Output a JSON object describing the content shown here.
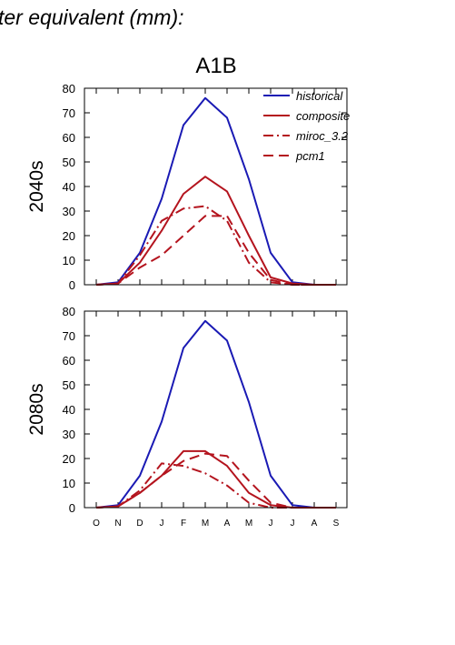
{
  "header_text": "ter equivalent (mm):",
  "scenario": "A1B",
  "colors": {
    "historical": "#1a1ab4",
    "projection": "#b4141e"
  },
  "chart_data": [
    {
      "type": "line",
      "panel_label": "2040s",
      "categories": [
        "O",
        "N",
        "D",
        "J",
        "F",
        "M",
        "A",
        "M",
        "J",
        "J",
        "A",
        "S"
      ],
      "ylim": [
        0,
        80
      ],
      "yticks": [
        0,
        10,
        20,
        30,
        40,
        50,
        60,
        70,
        80
      ],
      "legend_position": "top-right",
      "series": [
        {
          "name": "historical",
          "style": "solid",
          "color": "#1a1ab4",
          "values": [
            0,
            1,
            13,
            35,
            65,
            76,
            68,
            43,
            13,
            1,
            0,
            0
          ]
        },
        {
          "name": "composite",
          "style": "solid",
          "color": "#b4141e",
          "values": [
            0,
            0.5,
            9,
            22,
            37,
            44,
            38,
            20,
            3,
            0.5,
            0,
            0
          ]
        },
        {
          "name": "miroc_3.2",
          "style": "dashdot",
          "color": "#b4141e",
          "values": [
            0,
            0.5,
            12,
            26,
            31,
            32,
            26,
            9,
            1,
            0,
            0,
            0
          ]
        },
        {
          "name": "pcm1",
          "style": "dash",
          "color": "#b4141e",
          "values": [
            0,
            0.5,
            7,
            12,
            20,
            28,
            28,
            13,
            2,
            0,
            0,
            0
          ]
        }
      ]
    },
    {
      "type": "line",
      "panel_label": "2080s",
      "categories": [
        "O",
        "N",
        "D",
        "J",
        "F",
        "M",
        "A",
        "M",
        "J",
        "J",
        "A",
        "S"
      ],
      "ylim": [
        0,
        80
      ],
      "yticks": [
        0,
        10,
        20,
        30,
        40,
        50,
        60,
        70,
        80
      ],
      "series": [
        {
          "name": "historical",
          "style": "solid",
          "color": "#1a1ab4",
          "values": [
            0,
            1,
            13,
            35,
            65,
            76,
            68,
            43,
            13,
            1,
            0,
            0
          ]
        },
        {
          "name": "composite",
          "style": "solid",
          "color": "#b4141e",
          "values": [
            0,
            0.5,
            6,
            13,
            23,
            23,
            17,
            6,
            1,
            0,
            0,
            0
          ]
        },
        {
          "name": "miroc_3.2",
          "style": "dashdot",
          "color": "#b4141e",
          "values": [
            0,
            0.5,
            7,
            18,
            17,
            14,
            9,
            2,
            0,
            0,
            0,
            0
          ]
        },
        {
          "name": "pcm1",
          "style": "dash",
          "color": "#b4141e",
          "values": [
            0,
            0.5,
            6,
            13,
            19,
            22,
            21,
            11,
            2,
            0,
            0,
            0
          ]
        }
      ]
    }
  ]
}
